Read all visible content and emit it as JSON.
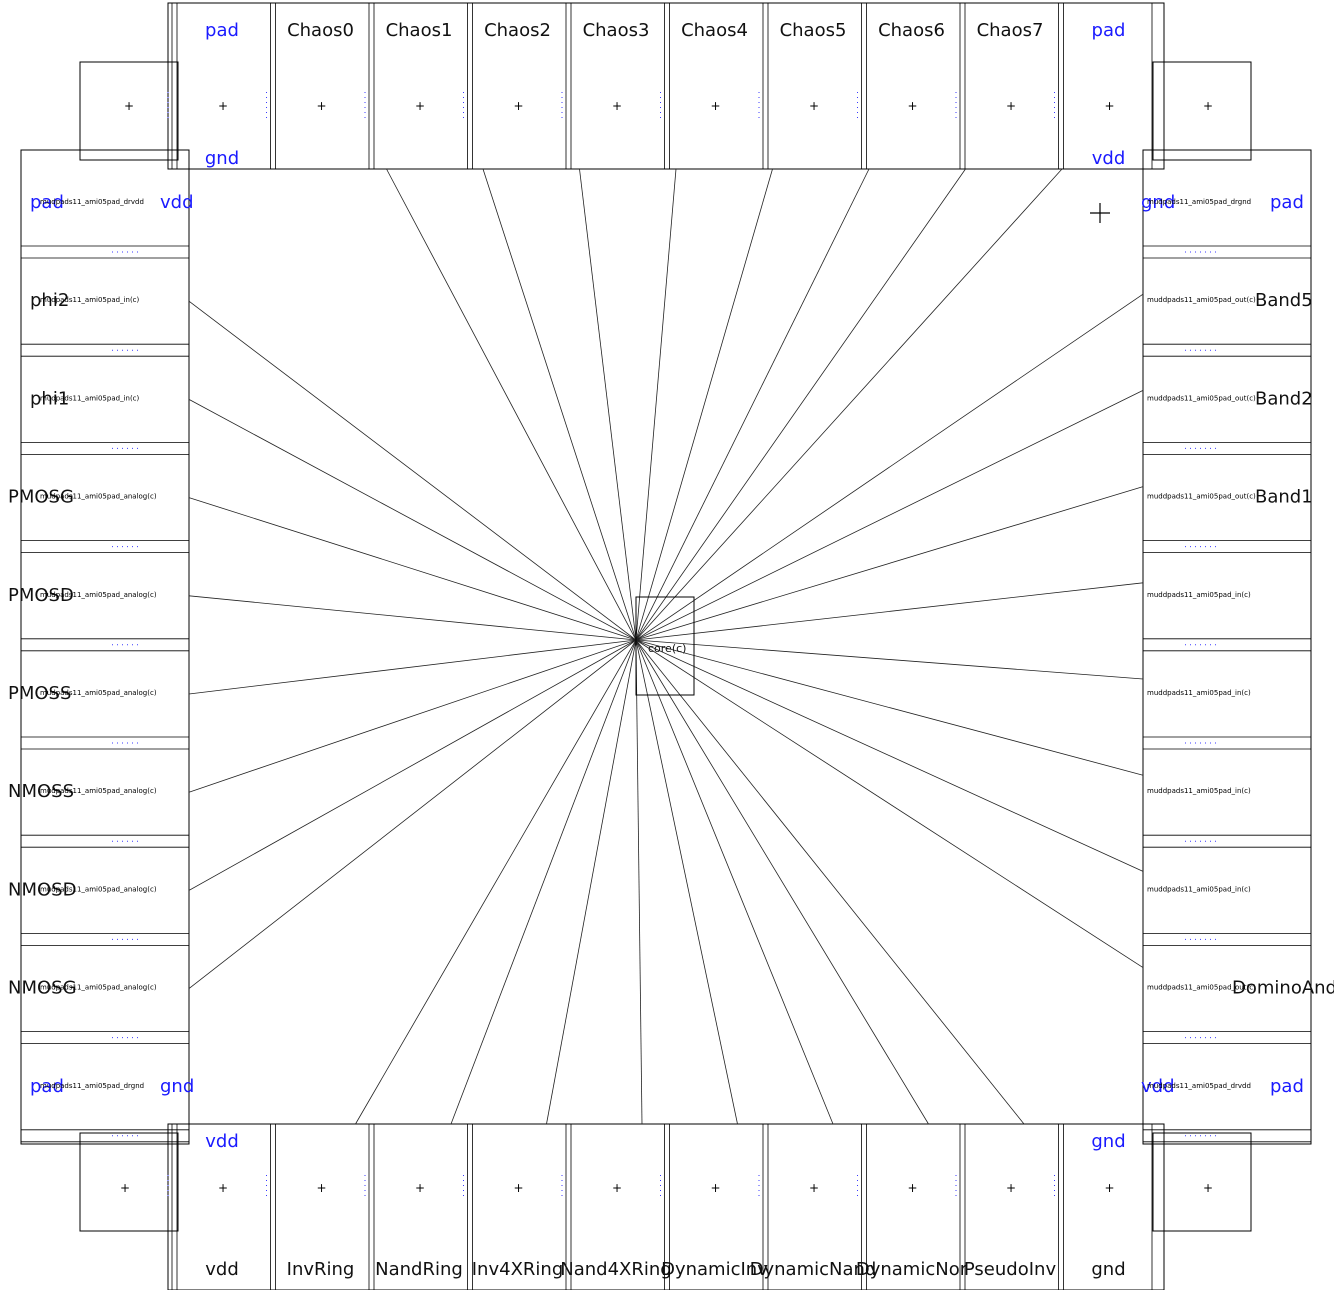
{
  "top_pads": [
    {
      "top": "pad",
      "bottom": "gnd",
      "net": true
    },
    {
      "top": "Chaos0",
      "bottom": "",
      "net": false
    },
    {
      "top": "Chaos1",
      "bottom": "",
      "net": false
    },
    {
      "top": "Chaos2",
      "bottom": "",
      "net": false
    },
    {
      "top": "Chaos3",
      "bottom": "",
      "net": false
    },
    {
      "top": "Chaos4",
      "bottom": "",
      "net": false
    },
    {
      "top": "Chaos5",
      "bottom": "",
      "net": false
    },
    {
      "top": "Chaos6",
      "bottom": "",
      "net": false
    },
    {
      "top": "Chaos7",
      "bottom": "",
      "net": false
    },
    {
      "top": "pad",
      "bottom": "vdd",
      "net": true
    }
  ],
  "bottom_pads": [
    {
      "top": "vdd",
      "bottom": "vdd"
    },
    {
      "top": "",
      "bottom": "InvRing"
    },
    {
      "top": "",
      "bottom": "NandRing"
    },
    {
      "top": "",
      "bottom": "Inv4XRing"
    },
    {
      "top": "",
      "bottom": "Nand4XRing"
    },
    {
      "top": "",
      "bottom": "DynamicInv"
    },
    {
      "top": "",
      "bottom": "DynamicNand"
    },
    {
      "top": "",
      "bottom": "DynamicNor"
    },
    {
      "top": "",
      "bottom": "PseudoInv"
    },
    {
      "top": "gnd",
      "bottom": "gnd"
    }
  ],
  "left_pads": [
    {
      "label": "pad",
      "cell": "mudpads11_ami05pad_drvdd",
      "right": "vdd",
      "color": "blue"
    },
    {
      "label": "phi2",
      "cell": "mudpads11_ami05pad_in(c)",
      "right": "",
      "color": "black"
    },
    {
      "label": "phi1",
      "cell": "mudpads11_ami05pad_in(c)",
      "right": "",
      "color": "black"
    },
    {
      "label": "PMOSG",
      "cell": "mudpads11_ami05pad_analog(c)",
      "right": "",
      "color": "black"
    },
    {
      "label": "PMOSD",
      "cell": "mudpads11_ami05pad_analog(c)",
      "right": "",
      "color": "black"
    },
    {
      "label": "PMOSS",
      "cell": "mudpads11_ami05pad_analog(c)",
      "right": "",
      "color": "black"
    },
    {
      "label": "NMOSS",
      "cell": "mudpads11_ami05pad_analog(c)",
      "right": "",
      "color": "black"
    },
    {
      "label": "NMOSD",
      "cell": "mudpads11_ami05pad_analog(c)",
      "right": "",
      "color": "black"
    },
    {
      "label": "NMOSG",
      "cell": "mudpads11_ami05pad_analog(c)",
      "right": "",
      "color": "black"
    },
    {
      "label": "pad",
      "cell": "mudpads11_ami05pad_drgnd",
      "right": "gnd",
      "color": "blue"
    }
  ],
  "right_pads": [
    {
      "left": "gnd",
      "cell": "mudpads11_ami05pad_drgnd",
      "label": "pad",
      "color": "blue"
    },
    {
      "left": "",
      "cell": "muddpads11_ami05pad_out(c)",
      "label": "Band5",
      "color": "black"
    },
    {
      "left": "",
      "cell": "muddpads11_ami05pad_out(c)",
      "label": "Band2",
      "color": "black"
    },
    {
      "left": "",
      "cell": "muddpads11_ami05pad_out(c)",
      "label": "Band1",
      "color": "black"
    },
    {
      "left": "",
      "cell": "muddpads11_ami05pad_in(c)",
      "label": "",
      "color": "black"
    },
    {
      "left": "",
      "cell": "muddpads11_ami05pad_in(c)",
      "label": "",
      "color": "black"
    },
    {
      "left": "",
      "cell": "muddpads11_ami05pad_in(c)",
      "label": "",
      "color": "black"
    },
    {
      "left": "",
      "cell": "muddpads11_ami05pad_in(c)",
      "label": "",
      "color": "black"
    },
    {
      "left": "",
      "cell": "muddpads11_ami05pad_out(c)",
      "label": "DominoAnd",
      "color": "black"
    },
    {
      "left": "vdd",
      "cell": "mudpads11_ami05pad_drvdd",
      "label": "pad",
      "color": "blue"
    }
  ],
  "core": {
    "label": "core(c)"
  },
  "colors": {
    "net": "#1a1aff",
    "line": "#000000",
    "wire": "#222222"
  }
}
